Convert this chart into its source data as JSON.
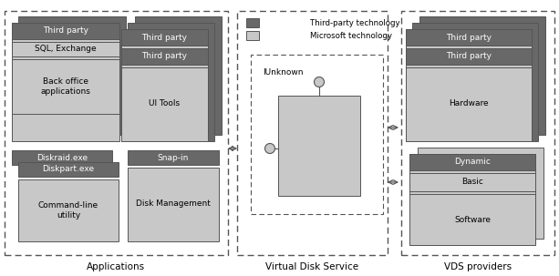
{
  "fig_width": 6.13,
  "fig_height": 3.03,
  "dpi": 100,
  "bg_color": "#ffffff",
  "dark_gray": "#686868",
  "light_gray": "#c8c8c8",
  "border_color": "#555555",
  "section_labels": [
    "Applications",
    "Virtual Disk Service",
    "VDS providers"
  ]
}
